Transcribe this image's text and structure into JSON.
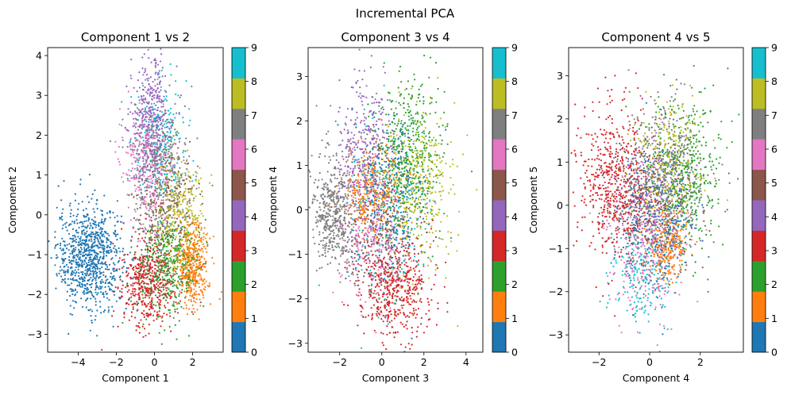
{
  "figure": {
    "suptitle": "Incremental PCA"
  },
  "colormap": {
    "name": "tab10",
    "colors": [
      "#1f77b4",
      "#ff7f0e",
      "#2ca02c",
      "#d62728",
      "#9467bd",
      "#8c564b",
      "#e377c2",
      "#7f7f7f",
      "#bcbd22",
      "#17becf"
    ],
    "ticks": [
      "0",
      "1",
      "2",
      "3",
      "4",
      "5",
      "6",
      "7",
      "8",
      "9"
    ]
  },
  "chart_data": [
    {
      "type": "scatter",
      "title": "Component 1 vs 2",
      "xlabel": "Component 1",
      "ylabel": "Component 2",
      "xlim": [
        -5.6,
        3.6
      ],
      "ylim": [
        -3.45,
        4.2
      ],
      "xticks": [
        -4,
        -2,
        0,
        2
      ],
      "yticks": [
        -3,
        -2,
        -1,
        0,
        1,
        2,
        3,
        4
      ],
      "grid": false,
      "colorbar": {
        "min": 0,
        "max": 9,
        "ticks": [
          0,
          1,
          2,
          3,
          4,
          5,
          6,
          7,
          8,
          9
        ]
      },
      "clusters": [
        {
          "label": 0,
          "cx": -3.4,
          "cy": -1.05,
          "sx": 0.85,
          "sy": 0.65,
          "n": 900
        },
        {
          "label": 1,
          "cx": 2.0,
          "cy": -1.25,
          "sx": 0.42,
          "sy": 0.5,
          "n": 450
        },
        {
          "label": 2,
          "cx": 0.7,
          "cy": -1.3,
          "sx": 0.8,
          "sy": 0.6,
          "n": 420
        },
        {
          "label": 3,
          "cx": -0.4,
          "cy": -1.7,
          "sx": 0.75,
          "sy": 0.55,
          "n": 480
        },
        {
          "label": 4,
          "cx": -0.2,
          "cy": 2.3,
          "sx": 0.55,
          "sy": 0.8,
          "n": 420
        },
        {
          "label": 5,
          "cx": 0.5,
          "cy": 0.3,
          "sx": 0.8,
          "sy": 0.8,
          "n": 250
        },
        {
          "label": 6,
          "cx": -0.4,
          "cy": 1.2,
          "sx": 0.7,
          "sy": 0.75,
          "n": 300
        },
        {
          "label": 7,
          "cx": 0.4,
          "cy": 0.9,
          "sx": 0.8,
          "sy": 0.9,
          "n": 320
        },
        {
          "label": 8,
          "cx": 1.2,
          "cy": 0.1,
          "sx": 0.7,
          "sy": 0.7,
          "n": 320
        },
        {
          "label": 9,
          "cx": 0.3,
          "cy": 1.7,
          "sx": 0.7,
          "sy": 0.8,
          "n": 250
        }
      ]
    },
    {
      "type": "scatter",
      "title": "Component 3 vs 4",
      "xlabel": "Component 3",
      "ylabel": "Component 4",
      "xlim": [
        -3.5,
        4.8
      ],
      "ylim": [
        -3.2,
        3.65
      ],
      "xticks": [
        -2,
        0,
        2,
        4
      ],
      "yticks": [
        -3,
        -2,
        -1,
        0,
        1,
        2,
        3
      ],
      "grid": false,
      "colorbar": {
        "min": 0,
        "max": 9,
        "ticks": [
          0,
          1,
          2,
          3,
          4,
          5,
          6,
          7,
          8,
          9
        ]
      },
      "clusters": [
        {
          "label": 0,
          "cx": 0.3,
          "cy": 0.3,
          "sx": 0.9,
          "sy": 0.9,
          "n": 300
        },
        {
          "label": 1,
          "cx": -0.5,
          "cy": 0.4,
          "sx": 0.7,
          "sy": 0.5,
          "n": 300
        },
        {
          "label": 2,
          "cx": 1.3,
          "cy": 1.3,
          "sx": 0.8,
          "sy": 0.8,
          "n": 450
        },
        {
          "label": 3,
          "cx": 0.6,
          "cy": -1.8,
          "sx": 0.9,
          "sy": 0.6,
          "n": 480
        },
        {
          "label": 4,
          "cx": -0.8,
          "cy": 1.4,
          "sx": 0.7,
          "sy": 0.8,
          "n": 350
        },
        {
          "label": 5,
          "cx": 0.0,
          "cy": -0.5,
          "sx": 0.9,
          "sy": 0.8,
          "n": 280
        },
        {
          "label": 6,
          "cx": -0.5,
          "cy": -0.6,
          "sx": 0.8,
          "sy": 0.8,
          "n": 280
        },
        {
          "label": 7,
          "cx": -2.3,
          "cy": -0.1,
          "sx": 0.5,
          "sy": 0.6,
          "n": 450
        },
        {
          "label": 8,
          "cx": 1.8,
          "cy": 0.5,
          "sx": 0.8,
          "sy": 0.8,
          "n": 350
        },
        {
          "label": 9,
          "cx": 0.2,
          "cy": -0.2,
          "sx": 1.0,
          "sy": 1.0,
          "n": 220
        }
      ]
    },
    {
      "type": "scatter",
      "title": "Component 4 vs 5",
      "xlabel": "Component 4",
      "ylabel": "Component 5",
      "xlim": [
        -3.2,
        3.7
      ],
      "ylim": [
        -3.4,
        3.65
      ],
      "xticks": [
        -2,
        0,
        2
      ],
      "yticks": [
        -3,
        -2,
        -1,
        0,
        1,
        2,
        3
      ],
      "grid": false,
      "colorbar": {
        "min": 0,
        "max": 9,
        "ticks": [
          0,
          1,
          2,
          3,
          4,
          5,
          6,
          7,
          8,
          9
        ]
      },
      "clusters": [
        {
          "label": 0,
          "cx": 0.3,
          "cy": -0.4,
          "sx": 0.8,
          "sy": 0.8,
          "n": 300
        },
        {
          "label": 1,
          "cx": 0.7,
          "cy": -0.9,
          "sx": 0.4,
          "sy": 0.4,
          "n": 250
        },
        {
          "label": 2,
          "cx": 1.3,
          "cy": 0.7,
          "sx": 0.8,
          "sy": 0.9,
          "n": 480
        },
        {
          "label": 3,
          "cx": -1.4,
          "cy": 0.5,
          "sx": 0.7,
          "sy": 0.9,
          "n": 550
        },
        {
          "label": 4,
          "cx": 0.2,
          "cy": 0.3,
          "sx": 0.8,
          "sy": 0.8,
          "n": 300
        },
        {
          "label": 5,
          "cx": 0.0,
          "cy": 0.0,
          "sx": 0.8,
          "sy": 0.8,
          "n": 250
        },
        {
          "label": 6,
          "cx": -0.2,
          "cy": -0.9,
          "sx": 0.8,
          "sy": 0.8,
          "n": 300
        },
        {
          "label": 7,
          "cx": 0.5,
          "cy": 0.8,
          "sx": 0.8,
          "sy": 0.8,
          "n": 300
        },
        {
          "label": 8,
          "cx": 0.8,
          "cy": 1.0,
          "sx": 0.7,
          "sy": 0.7,
          "n": 260
        },
        {
          "label": 9,
          "cx": -0.3,
          "cy": -1.6,
          "sx": 0.6,
          "sy": 0.6,
          "n": 200
        }
      ]
    }
  ]
}
